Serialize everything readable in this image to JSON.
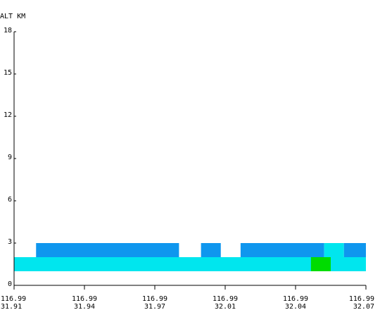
{
  "chart_data": {
    "type": "heatmap",
    "ylabel": "ALT KM",
    "ylim": [
      0,
      18
    ],
    "yticks": [
      "0",
      "3",
      "6",
      "9",
      "12",
      "15",
      "18"
    ],
    "xlim": [
      31.91,
      32.07
    ],
    "xticks": [
      {
        "lon": "116.99",
        "lat": "31.91"
      },
      {
        "lon": "116.99",
        "lat": "31.94"
      },
      {
        "lon": "116.99",
        "lat": "31.97"
      },
      {
        "lon": "116.99",
        "lat": "32.01"
      },
      {
        "lon": "116.99",
        "lat": "32.04"
      },
      {
        "lon": "116.99",
        "lat": "32.07"
      }
    ],
    "legend": {
      "blue": "#0f96ee",
      "cyan": "#00e6ee",
      "green": "#00dc00"
    },
    "cells": [
      {
        "x0": 31.91,
        "x1": 32.07,
        "y0": 1.0,
        "y1": 2.0,
        "color": "#00e6ee"
      },
      {
        "x0": 32.045,
        "x1": 32.054,
        "y0": 1.0,
        "y1": 2.0,
        "color": "#00dc00"
      },
      {
        "x0": 31.92,
        "x1": 31.985,
        "y0": 2.0,
        "y1": 3.0,
        "color": "#0f96ee"
      },
      {
        "x0": 31.995,
        "x1": 32.004,
        "y0": 2.0,
        "y1": 3.0,
        "color": "#0f96ee"
      },
      {
        "x0": 32.013,
        "x1": 32.051,
        "y0": 2.0,
        "y1": 3.0,
        "color": "#0f96ee"
      },
      {
        "x0": 32.051,
        "x1": 32.06,
        "y0": 2.0,
        "y1": 3.0,
        "color": "#00e6ee"
      },
      {
        "x0": 32.06,
        "x1": 32.07,
        "y0": 2.0,
        "y1": 3.0,
        "color": "#0f96ee"
      }
    ]
  }
}
